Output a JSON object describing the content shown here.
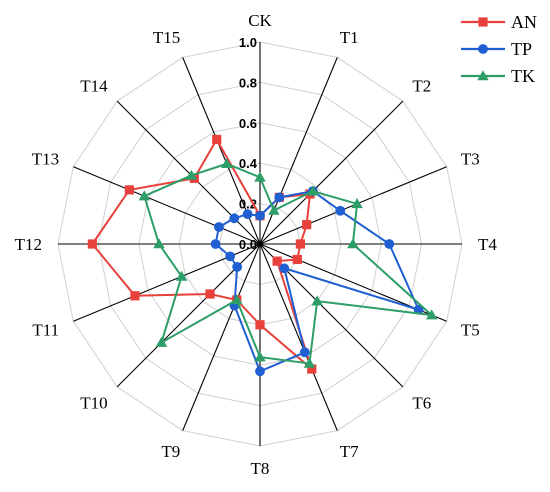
{
  "chart_data": {
    "type": "radar",
    "axes": [
      "CK",
      "T1",
      "T2",
      "T3",
      "T4",
      "T5",
      "T6",
      "T7",
      "T8",
      "T9",
      "T10",
      "T11",
      "T12",
      "T13",
      "T14",
      "T15"
    ],
    "ticks": [
      "0.0",
      "0.2",
      "0.4",
      "0.6",
      "0.8",
      "1.0"
    ],
    "range": [
      0,
      1.0
    ],
    "grid": true,
    "legend_position": "top-right",
    "series": [
      {
        "name": "AN",
        "color": "#e8413b",
        "marker": "square",
        "values": [
          0.14,
          0.25,
          0.35,
          0.25,
          0.2,
          0.2,
          0.12,
          0.67,
          0.4,
          0.3,
          0.35,
          0.67,
          0.83,
          0.7,
          0.46,
          0.56
        ]
      },
      {
        "name": "TP",
        "color": "#1f5fd1",
        "marker": "circle",
        "values": [
          0.14,
          0.25,
          0.37,
          0.43,
          0.64,
          0.85,
          0.17,
          0.58,
          0.63,
          0.33,
          0.16,
          0.16,
          0.22,
          0.22,
          0.18,
          0.16
        ]
      },
      {
        "name": "TK",
        "color": "#2e9e68",
        "marker": "triangle",
        "values": [
          0.33,
          0.18,
          0.37,
          0.52,
          0.46,
          0.92,
          0.4,
          0.64,
          0.56,
          0.3,
          0.69,
          0.42,
          0.5,
          0.62,
          0.48,
          0.43
        ]
      }
    ]
  }
}
